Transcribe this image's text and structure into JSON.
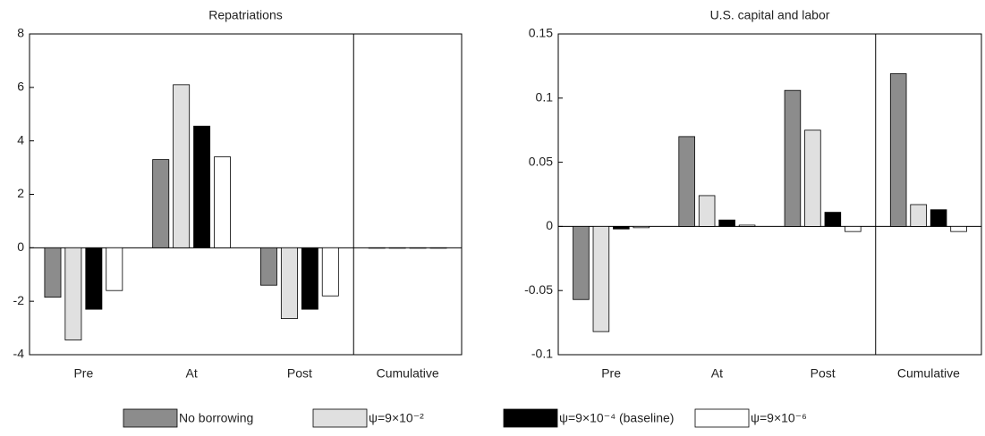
{
  "chart_data": [
    {
      "type": "bar",
      "title": "Repatriations",
      "categories": [
        "Pre",
        "At",
        "Post",
        "Cumulative"
      ],
      "series": [
        {
          "name": "No borrowing",
          "color": "#8c8c8c",
          "values": [
            -1.85,
            3.3,
            -1.4,
            0
          ]
        },
        {
          "name": "ψ=9×10⁻²",
          "color": "#e0e0e0",
          "values": [
            -3.45,
            6.1,
            -2.65,
            0
          ]
        },
        {
          "name": "ψ=9×10⁻⁴ (baseline)",
          "color": "#000000",
          "values": [
            -2.3,
            4.55,
            -2.3,
            0
          ]
        },
        {
          "name": "ψ=9×10⁻⁶",
          "color": "#ffffff",
          "values": [
            -1.6,
            3.4,
            -1.8,
            0
          ]
        }
      ],
      "ylim": [
        -4,
        8
      ],
      "yticks": [
        -4,
        -2,
        0,
        2,
        4,
        6,
        8
      ],
      "grid": false,
      "legend": "bottom"
    },
    {
      "type": "bar",
      "title": "U.S. capital and labor",
      "categories": [
        "Pre",
        "At",
        "Post",
        "Cumulative"
      ],
      "series": [
        {
          "color": "#8c8c8c",
          "values": [
            -0.057,
            0.07,
            0.106,
            0.119
          ]
        },
        {
          "color": "#e0e0e0",
          "values": [
            -0.082,
            0.024,
            0.075,
            0.017
          ]
        },
        {
          "color": "#000000",
          "values": [
            -0.002,
            0.005,
            0.011,
            0.013
          ]
        },
        {
          "color": "#ffffff",
          "values": [
            -0.001,
            0.001,
            -0.004,
            -0.004
          ]
        }
      ],
      "ylim": [
        -0.1,
        0.15
      ],
      "yticks": [
        -0.1,
        -0.05,
        0,
        0.05,
        0.1,
        0.15
      ],
      "grid": false
    }
  ]
}
